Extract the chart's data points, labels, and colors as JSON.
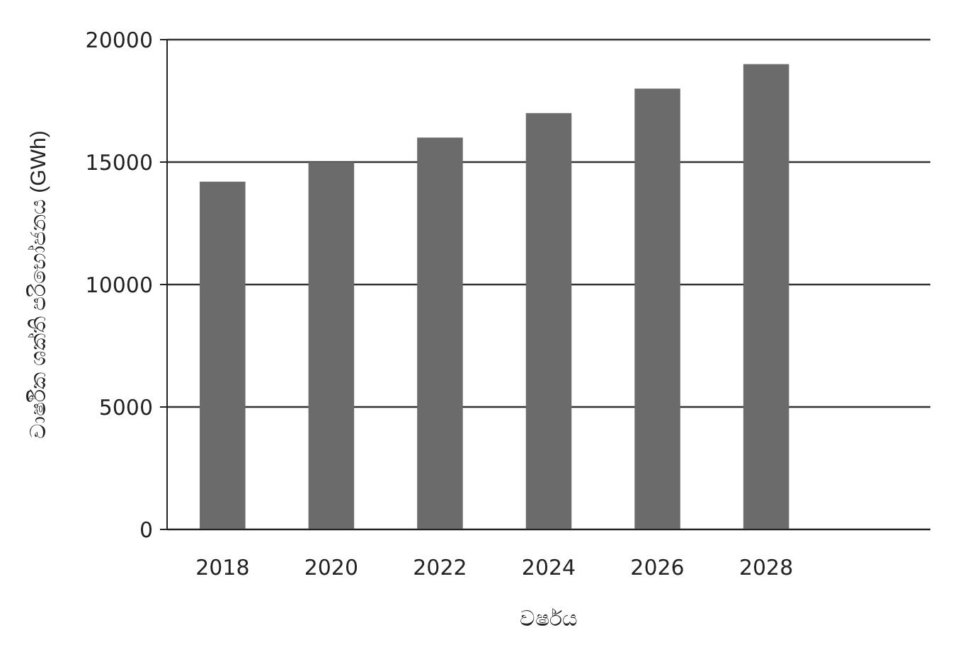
{
  "chart_data": {
    "type": "bar",
    "xlabel": "වර්ෂය",
    "ylabel": "වාර්ෂික ශක්ති පරිභෝජනය (GWh)",
    "categories": [
      "2018",
      "2020",
      "2022",
      "2024",
      "2026",
      "2028",
      null
    ],
    "values": [
      14200,
      15000,
      16000,
      17000,
      18000,
      19000,
      null
    ],
    "color": "#6b6b6b",
    "ylim": [
      0,
      20000
    ],
    "yticks": [
      0,
      5000,
      10000,
      15000,
      20000
    ],
    "grid": "y"
  }
}
